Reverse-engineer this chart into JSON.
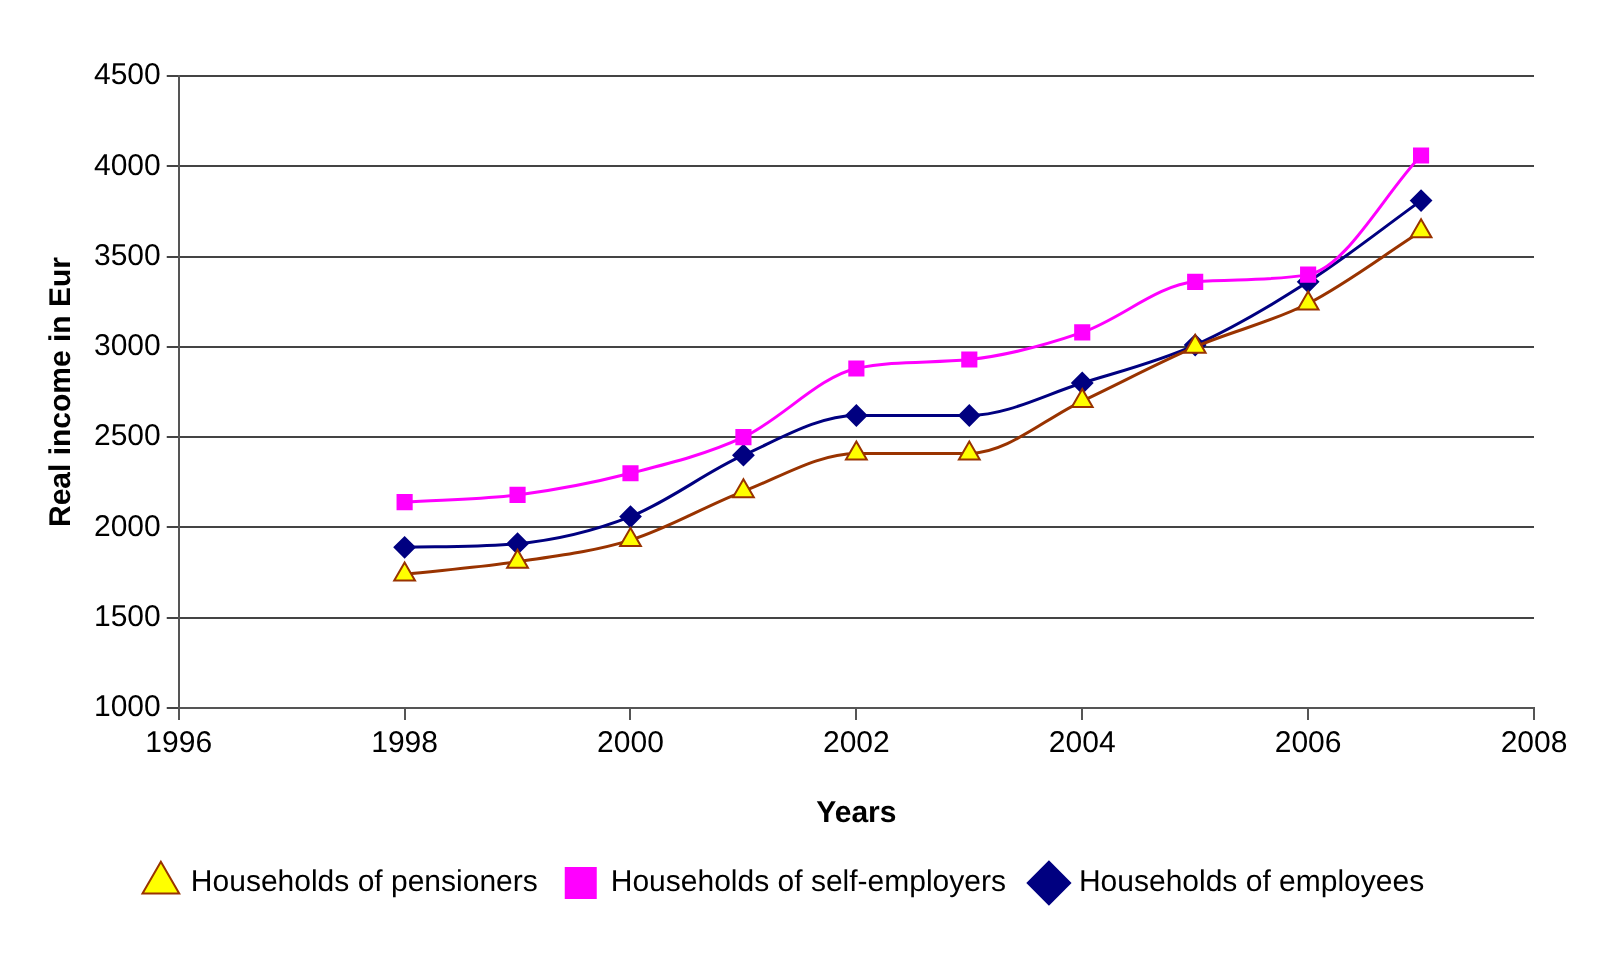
{
  "chart_data": {
    "type": "line",
    "xlabel": "Years",
    "ylabel": "Real income in Eur",
    "x": [
      1998,
      1999,
      2000,
      2001,
      2002,
      2003,
      2004,
      2005,
      2006,
      2007
    ],
    "series": [
      {
        "name": "Households of employees",
        "color": "#000080",
        "marker": "diamond",
        "values": [
          1890,
          1910,
          2060,
          2400,
          2620,
          2620,
          2800,
          3010,
          3360,
          3810
        ]
      },
      {
        "name": "Households of self-employers",
        "color": "#ff00ff",
        "marker": "square",
        "values": [
          2140,
          2180,
          2300,
          2500,
          2880,
          2930,
          3080,
          3360,
          3400,
          4060
        ]
      },
      {
        "name": "Households of pensioners",
        "color": "#993300",
        "marker": "triangle",
        "values": [
          1740,
          1810,
          1930,
          2200,
          2410,
          2410,
          2700,
          3000,
          3240,
          3640
        ]
      }
    ],
    "xlim": [
      1996,
      2008
    ],
    "xticks": [
      1996,
      1998,
      2000,
      2002,
      2004,
      2006,
      2008
    ],
    "ylim": [
      1000,
      4500
    ],
    "yticks": [
      1000,
      1500,
      2000,
      2500,
      3000,
      3500,
      4000,
      4500
    ],
    "grid": "y",
    "legend": "bottom"
  }
}
